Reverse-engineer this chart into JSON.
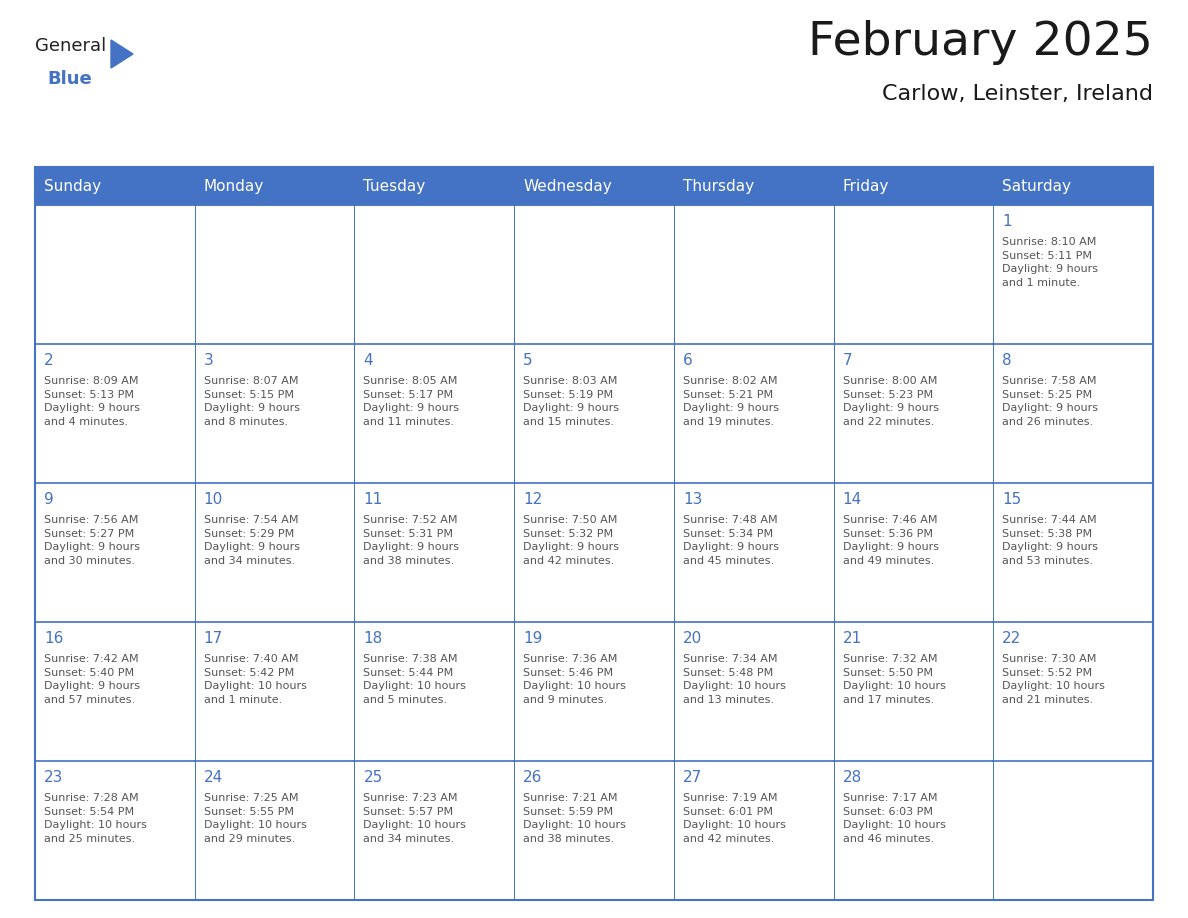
{
  "title": "February 2025",
  "subtitle": "Carlow, Leinster, Ireland",
  "days_of_week": [
    "Sunday",
    "Monday",
    "Tuesday",
    "Wednesday",
    "Thursday",
    "Friday",
    "Saturday"
  ],
  "header_bg_color": "#4472C4",
  "header_text_color": "#FFFFFF",
  "grid_line_color": "#4472C4",
  "day_number_color": "#4472C4",
  "text_color": "#555555",
  "title_color": "#1a1a1a",
  "weeks": [
    [
      {
        "day": null,
        "info": null
      },
      {
        "day": null,
        "info": null
      },
      {
        "day": null,
        "info": null
      },
      {
        "day": null,
        "info": null
      },
      {
        "day": null,
        "info": null
      },
      {
        "day": null,
        "info": null
      },
      {
        "day": 1,
        "info": "Sunrise: 8:10 AM\nSunset: 5:11 PM\nDaylight: 9 hours\nand 1 minute."
      }
    ],
    [
      {
        "day": 2,
        "info": "Sunrise: 8:09 AM\nSunset: 5:13 PM\nDaylight: 9 hours\nand 4 minutes."
      },
      {
        "day": 3,
        "info": "Sunrise: 8:07 AM\nSunset: 5:15 PM\nDaylight: 9 hours\nand 8 minutes."
      },
      {
        "day": 4,
        "info": "Sunrise: 8:05 AM\nSunset: 5:17 PM\nDaylight: 9 hours\nand 11 minutes."
      },
      {
        "day": 5,
        "info": "Sunrise: 8:03 AM\nSunset: 5:19 PM\nDaylight: 9 hours\nand 15 minutes."
      },
      {
        "day": 6,
        "info": "Sunrise: 8:02 AM\nSunset: 5:21 PM\nDaylight: 9 hours\nand 19 minutes."
      },
      {
        "day": 7,
        "info": "Sunrise: 8:00 AM\nSunset: 5:23 PM\nDaylight: 9 hours\nand 22 minutes."
      },
      {
        "day": 8,
        "info": "Sunrise: 7:58 AM\nSunset: 5:25 PM\nDaylight: 9 hours\nand 26 minutes."
      }
    ],
    [
      {
        "day": 9,
        "info": "Sunrise: 7:56 AM\nSunset: 5:27 PM\nDaylight: 9 hours\nand 30 minutes."
      },
      {
        "day": 10,
        "info": "Sunrise: 7:54 AM\nSunset: 5:29 PM\nDaylight: 9 hours\nand 34 minutes."
      },
      {
        "day": 11,
        "info": "Sunrise: 7:52 AM\nSunset: 5:31 PM\nDaylight: 9 hours\nand 38 minutes."
      },
      {
        "day": 12,
        "info": "Sunrise: 7:50 AM\nSunset: 5:32 PM\nDaylight: 9 hours\nand 42 minutes."
      },
      {
        "day": 13,
        "info": "Sunrise: 7:48 AM\nSunset: 5:34 PM\nDaylight: 9 hours\nand 45 minutes."
      },
      {
        "day": 14,
        "info": "Sunrise: 7:46 AM\nSunset: 5:36 PM\nDaylight: 9 hours\nand 49 minutes."
      },
      {
        "day": 15,
        "info": "Sunrise: 7:44 AM\nSunset: 5:38 PM\nDaylight: 9 hours\nand 53 minutes."
      }
    ],
    [
      {
        "day": 16,
        "info": "Sunrise: 7:42 AM\nSunset: 5:40 PM\nDaylight: 9 hours\nand 57 minutes."
      },
      {
        "day": 17,
        "info": "Sunrise: 7:40 AM\nSunset: 5:42 PM\nDaylight: 10 hours\nand 1 minute."
      },
      {
        "day": 18,
        "info": "Sunrise: 7:38 AM\nSunset: 5:44 PM\nDaylight: 10 hours\nand 5 minutes."
      },
      {
        "day": 19,
        "info": "Sunrise: 7:36 AM\nSunset: 5:46 PM\nDaylight: 10 hours\nand 9 minutes."
      },
      {
        "day": 20,
        "info": "Sunrise: 7:34 AM\nSunset: 5:48 PM\nDaylight: 10 hours\nand 13 minutes."
      },
      {
        "day": 21,
        "info": "Sunrise: 7:32 AM\nSunset: 5:50 PM\nDaylight: 10 hours\nand 17 minutes."
      },
      {
        "day": 22,
        "info": "Sunrise: 7:30 AM\nSunset: 5:52 PM\nDaylight: 10 hours\nand 21 minutes."
      }
    ],
    [
      {
        "day": 23,
        "info": "Sunrise: 7:28 AM\nSunset: 5:54 PM\nDaylight: 10 hours\nand 25 minutes."
      },
      {
        "day": 24,
        "info": "Sunrise: 7:25 AM\nSunset: 5:55 PM\nDaylight: 10 hours\nand 29 minutes."
      },
      {
        "day": 25,
        "info": "Sunrise: 7:23 AM\nSunset: 5:57 PM\nDaylight: 10 hours\nand 34 minutes."
      },
      {
        "day": 26,
        "info": "Sunrise: 7:21 AM\nSunset: 5:59 PM\nDaylight: 10 hours\nand 38 minutes."
      },
      {
        "day": 27,
        "info": "Sunrise: 7:19 AM\nSunset: 6:01 PM\nDaylight: 10 hours\nand 42 minutes."
      },
      {
        "day": 28,
        "info": "Sunrise: 7:17 AM\nSunset: 6:03 PM\nDaylight: 10 hours\nand 46 minutes."
      },
      {
        "day": null,
        "info": null
      }
    ]
  ],
  "fig_width": 11.88,
  "fig_height": 9.18,
  "dpi": 100
}
